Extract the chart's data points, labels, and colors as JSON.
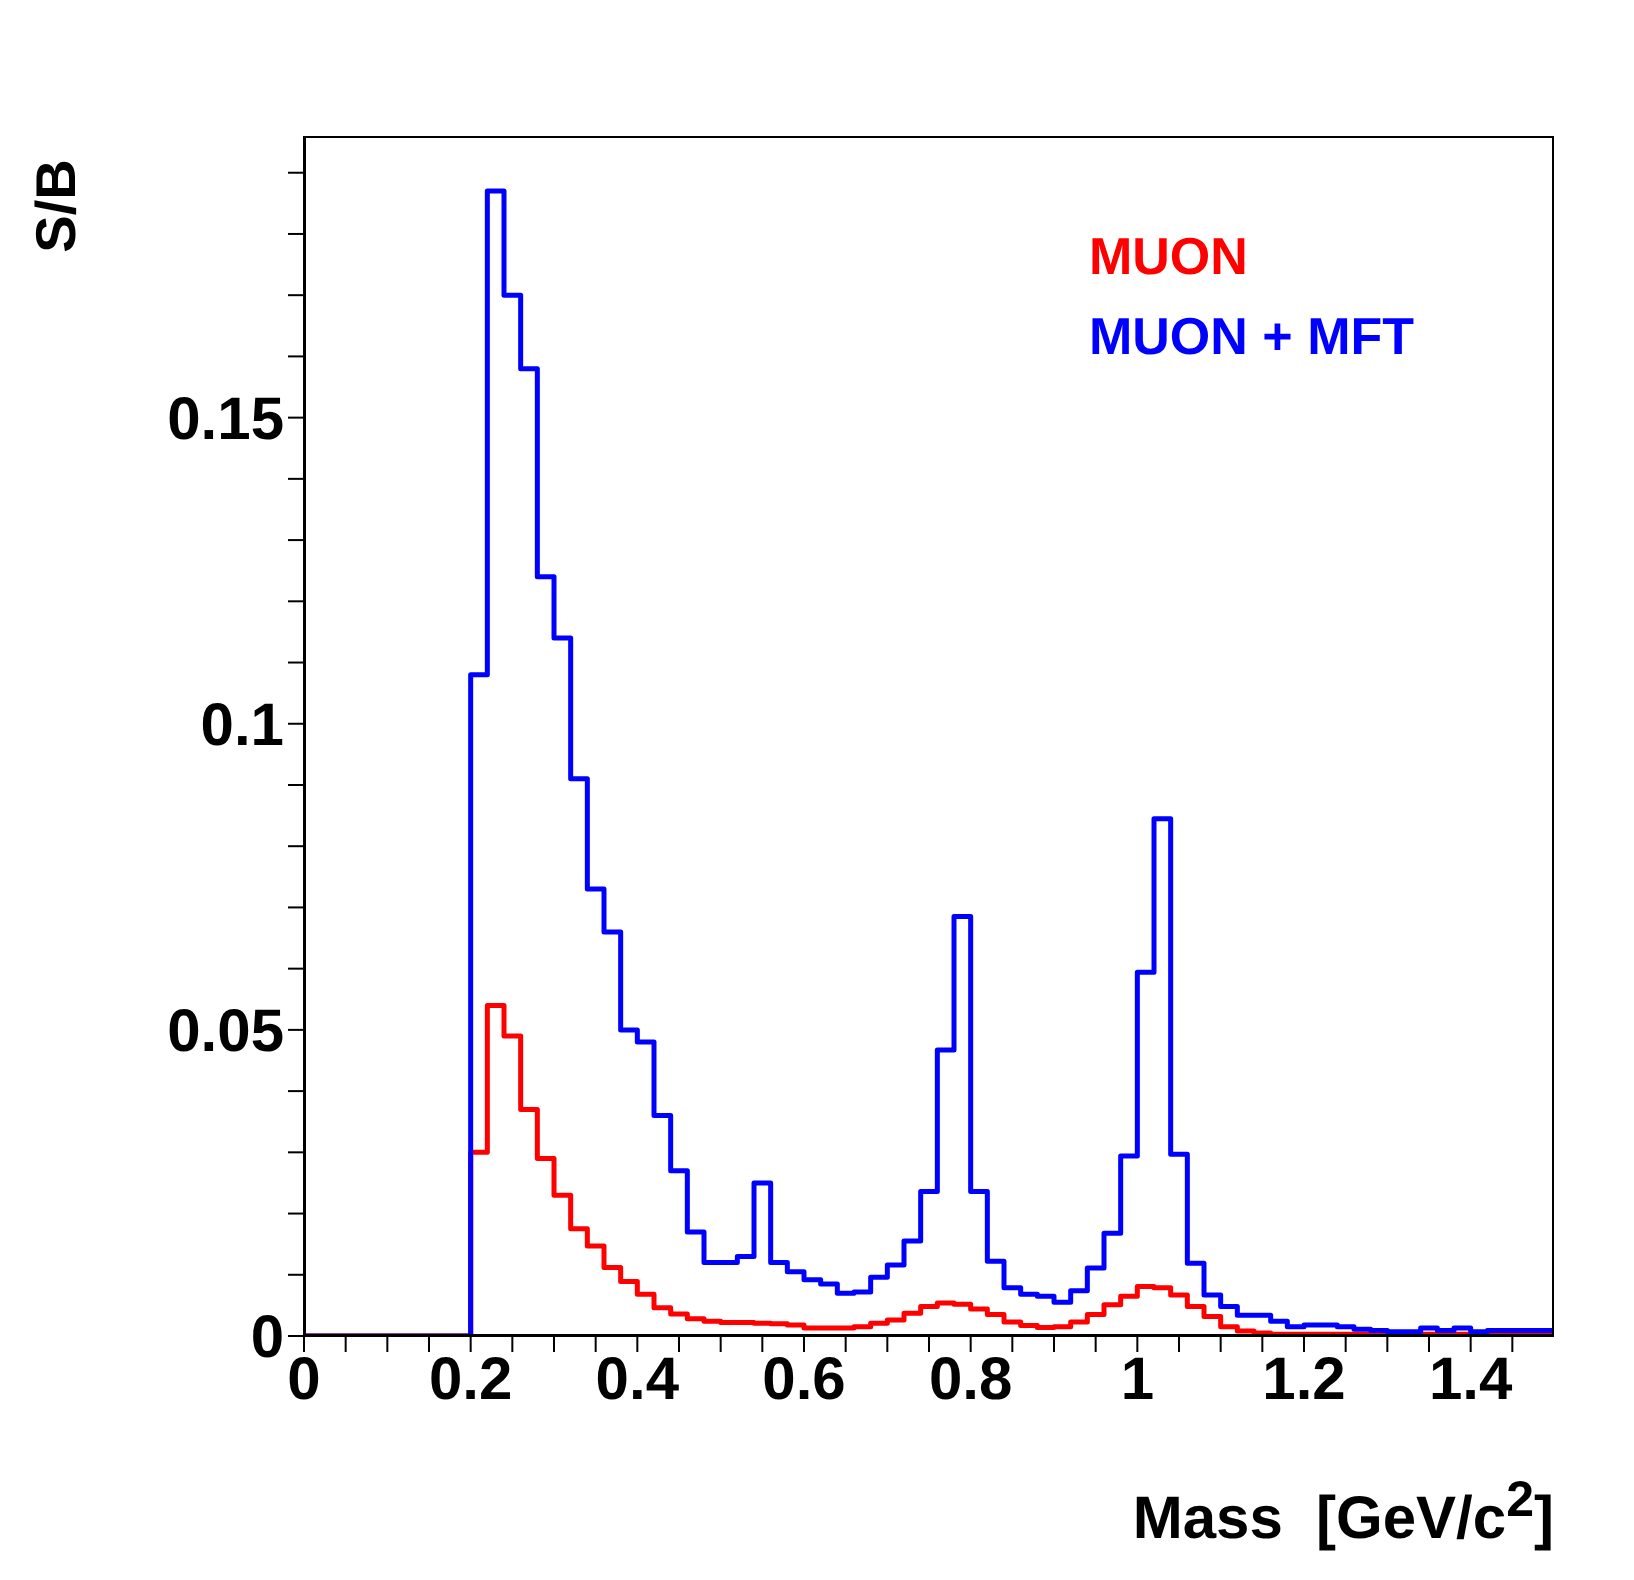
{
  "chart_data": {
    "type": "histogram",
    "xlabel": "Mass  [GeV/c$^{2}$]",
    "ylabel": "S/B",
    "bins": [
      0,
      0.02,
      0.04,
      0.06,
      0.08,
      0.1,
      0.12,
      0.14,
      0.16,
      0.18,
      0.2,
      0.22,
      0.24,
      0.26,
      0.28,
      0.3,
      0.32,
      0.34,
      0.36,
      0.38,
      0.4,
      0.42,
      0.44,
      0.46,
      0.48,
      0.5,
      0.52,
      0.54,
      0.56,
      0.58,
      0.6,
      0.62,
      0.64,
      0.66,
      0.68,
      0.7,
      0.72,
      0.74,
      0.76,
      0.78,
      0.8,
      0.82,
      0.84,
      0.86,
      0.88,
      0.9,
      0.92,
      0.94,
      0.96,
      0.98,
      1,
      1.02,
      1.04,
      1.06,
      1.08,
      1.1,
      1.12,
      1.14,
      1.16,
      1.18,
      1.2,
      1.22,
      1.24,
      1.26,
      1.28,
      1.3,
      1.32,
      1.34,
      1.36,
      1.38,
      1.4,
      1.42,
      1.44,
      1.46,
      1.48,
      1.5
    ],
    "series": [
      {
        "name": "MUON",
        "color": "#ff0000",
        "values": [
          0,
          0,
          0,
          0,
          0,
          0,
          0,
          0,
          0,
          0,
          0.03,
          0.054,
          0.049,
          0.037,
          0.029,
          0.023,
          0.0175,
          0.0147,
          0.0112,
          0.0089,
          0.0068,
          0.0046,
          0.0036,
          0.0028,
          0.0024,
          0.0022,
          0.0022,
          0.0021,
          0.002,
          0.0018,
          0.0013,
          0.0013,
          0.0013,
          0.0015,
          0.0021,
          0.0026,
          0.0037,
          0.0048,
          0.0054,
          0.0052,
          0.0044,
          0.0035,
          0.0023,
          0.0017,
          0.0014,
          0.0015,
          0.0023,
          0.0035,
          0.0051,
          0.0065,
          0.0081,
          0.0079,
          0.0067,
          0.0048,
          0.0032,
          0.0015,
          0.0008,
          0.0005,
          0.0003,
          0.0003,
          0.0003,
          0.0003,
          0.0003,
          0.0003,
          0.0003,
          0.0003,
          0.0003,
          0.0003,
          0.0003,
          0.0003,
          0.0003,
          0.0003,
          0.0003,
          0.0003,
          0.0003
        ]
      },
      {
        "name": "MUON + MFT",
        "color": "#0000ff",
        "values": [
          0,
          0,
          0,
          0,
          0,
          0,
          0,
          0,
          0,
          0,
          0.108,
          0.187,
          0.17,
          0.158,
          0.124,
          0.114,
          0.091,
          0.073,
          0.066,
          0.05,
          0.048,
          0.036,
          0.027,
          0.017,
          0.012,
          0.012,
          0.013,
          0.025,
          0.012,
          0.0105,
          0.0092,
          0.0085,
          0.007,
          0.0072,
          0.0096,
          0.0116,
          0.0155,
          0.0236,
          0.0467,
          0.0685,
          0.0236,
          0.0122,
          0.0079,
          0.0068,
          0.0065,
          0.0055,
          0.0074,
          0.0111,
          0.0168,
          0.0294,
          0.0594,
          0.0845,
          0.0297,
          0.0119,
          0.0067,
          0.0048,
          0.0034,
          0.0034,
          0.0024,
          0.0015,
          0.0018,
          0.0018,
          0.0015,
          0.0011,
          0.0009,
          0.0007,
          0.0007,
          0.0013,
          0.0009,
          0.0013,
          0.0007,
          0.0009,
          0.0009,
          0.0009,
          0.0009
        ]
      }
    ],
    "xlim": [
      0,
      1.5
    ],
    "ylim": [
      0,
      0.196
    ],
    "xticks": [
      0,
      {
        "value": 0.05,
        "label": null
      },
      {
        "value": 0.1,
        "label": null
      },
      {
        "value": 0.15,
        "label": null
      },
      0.2,
      {
        "value": 0.25,
        "label": null
      },
      {
        "value": 0.3,
        "label": null
      },
      {
        "value": 0.35,
        "label": null
      },
      0.4,
      {
        "value": 0.45,
        "label": null
      },
      {
        "value": 0.5,
        "label": null
      },
      {
        "value": 0.55,
        "label": null
      },
      0.6,
      {
        "value": 0.65,
        "label": null
      },
      {
        "value": 0.7,
        "label": null
      },
      {
        "value": 0.75,
        "label": null
      },
      0.8,
      {
        "value": 0.85,
        "label": null
      },
      {
        "value": 0.9,
        "label": null
      },
      {
        "value": 0.95,
        "label": null
      },
      1,
      {
        "value": 1.05,
        "label": null
      },
      {
        "value": 1.1,
        "label": null
      },
      {
        "value": 1.15,
        "label": null
      },
      1.2,
      {
        "value": 1.25,
        "label": null
      },
      {
        "value": 1.3,
        "label": null
      },
      {
        "value": 1.35,
        "label": null
      },
      1.4,
      {
        "value": 1.45,
        "label": null
      }
    ],
    "yticks": [
      0,
      {
        "value": 0.01,
        "label": null
      },
      {
        "value": 0.02,
        "label": null
      },
      {
        "value": 0.03,
        "label": null
      },
      {
        "value": 0.04,
        "label": null
      },
      0.05,
      {
        "value": 0.06,
        "label": null
      },
      {
        "value": 0.07,
        "label": null
      },
      {
        "value": 0.08,
        "label": null
      },
      {
        "value": 0.09,
        "label": null
      },
      0.1,
      {
        "value": 0.11,
        "label": null
      },
      {
        "value": 0.12,
        "label": null
      },
      {
        "value": 0.13,
        "label": null
      },
      {
        "value": 0.14,
        "label": null
      },
      0.15,
      {
        "value": 0.16,
        "label": null
      },
      {
        "value": 0.17,
        "label": null
      },
      {
        "value": 0.18,
        "label": null
      },
      {
        "value": 0.19,
        "label": null
      }
    ],
    "grid": false,
    "legend": "top right"
  }
}
